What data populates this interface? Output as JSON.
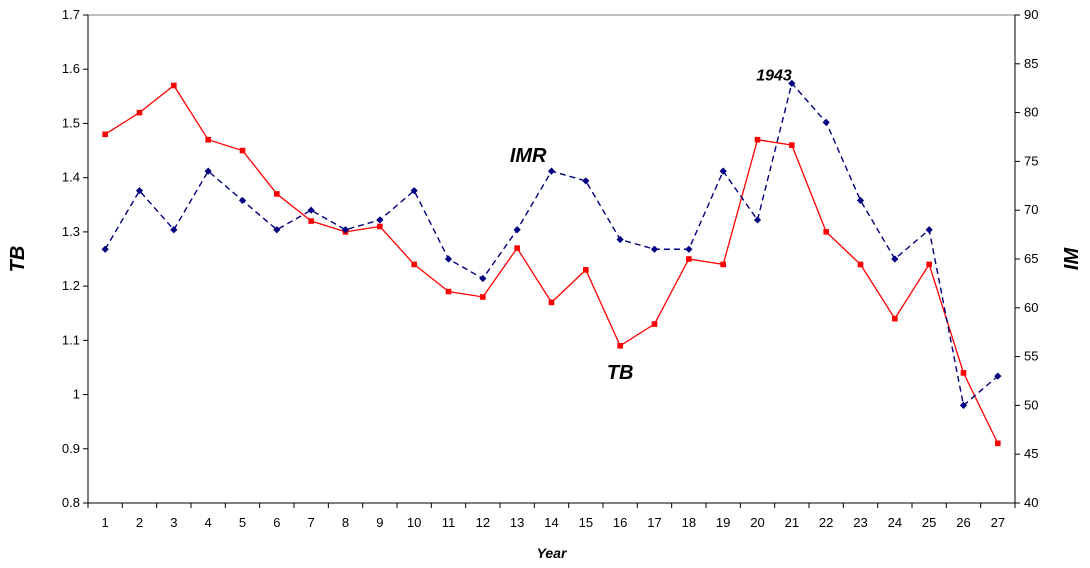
{
  "chart_data": {
    "type": "line",
    "xlabel": "Year",
    "ylabel_left": "TB",
    "ylabel_right": "IM",
    "x": [
      1,
      2,
      3,
      4,
      5,
      6,
      7,
      8,
      9,
      10,
      11,
      12,
      13,
      14,
      15,
      16,
      17,
      18,
      19,
      20,
      21,
      22,
      23,
      24,
      25,
      26,
      27
    ],
    "left_axis": {
      "ylim": [
        0.8,
        1.7
      ],
      "ticks": [
        "0.8",
        "0.9",
        "1",
        "1.1",
        "1.2",
        "1.3",
        "1.4",
        "1.5",
        "1.6",
        "1.7"
      ]
    },
    "right_axis": {
      "ylim": [
        40,
        90
      ],
      "ticks": [
        "40",
        "45",
        "50",
        "55",
        "60",
        "65",
        "70",
        "75",
        "80",
        "85",
        "90"
      ]
    },
    "series": [
      {
        "name": "TB",
        "axis": "left",
        "color": "#ff0000",
        "line_style": "solid",
        "marker": "square",
        "values": [
          1.48,
          1.52,
          1.57,
          1.47,
          1.45,
          1.37,
          1.32,
          1.3,
          1.31,
          1.24,
          1.19,
          1.18,
          1.27,
          1.17,
          1.23,
          1.09,
          1.13,
          1.25,
          1.24,
          1.47,
          1.46,
          1.3,
          1.24,
          1.14,
          1.24,
          1.04,
          0.91
        ]
      },
      {
        "name": "IMR",
        "axis": "right",
        "color": "#000080",
        "line_style": "dashed",
        "marker": "diamond",
        "values": [
          66,
          72,
          68,
          74,
          71,
          68,
          70,
          68,
          69,
          72,
          65,
          63,
          68,
          74,
          73,
          67,
          66,
          66,
          74,
          69,
          83,
          79,
          71,
          65,
          68,
          50,
          53
        ]
      }
    ],
    "annotations": [
      {
        "text": "IMR",
        "near_x": 14,
        "series": "IMR"
      },
      {
        "text": "TB",
        "near_x": 16,
        "series": "TB"
      },
      {
        "text": "1943",
        "near_x": 21,
        "series": "IMR"
      }
    ],
    "grid": false,
    "legend": "none"
  }
}
